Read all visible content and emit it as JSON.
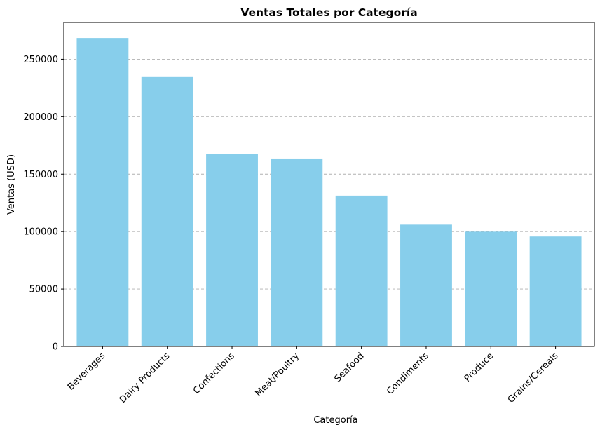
{
  "chart_data": {
    "type": "bar",
    "title": "Ventas Totales por Categoría",
    "xlabel": "Categoría",
    "ylabel": "Ventas (USD)",
    "categories": [
      "Beverages",
      "Dairy Products",
      "Confections",
      "Meat/Poultry",
      "Seafood",
      "Condiments",
      "Produce",
      "Grains/Cereals"
    ],
    "values": [
      268500,
      234500,
      167400,
      163000,
      131300,
      106000,
      99900,
      95700
    ],
    "ylim": [
      0,
      282000
    ],
    "yticks": [
      0,
      50000,
      100000,
      150000,
      200000,
      250000
    ],
    "ytick_labels": [
      "0",
      "50000",
      "100000",
      "150000",
      "200000",
      "250000"
    ],
    "bar_color": "#87ceeb",
    "grid": "y-axis dashed",
    "legend": "none"
  }
}
